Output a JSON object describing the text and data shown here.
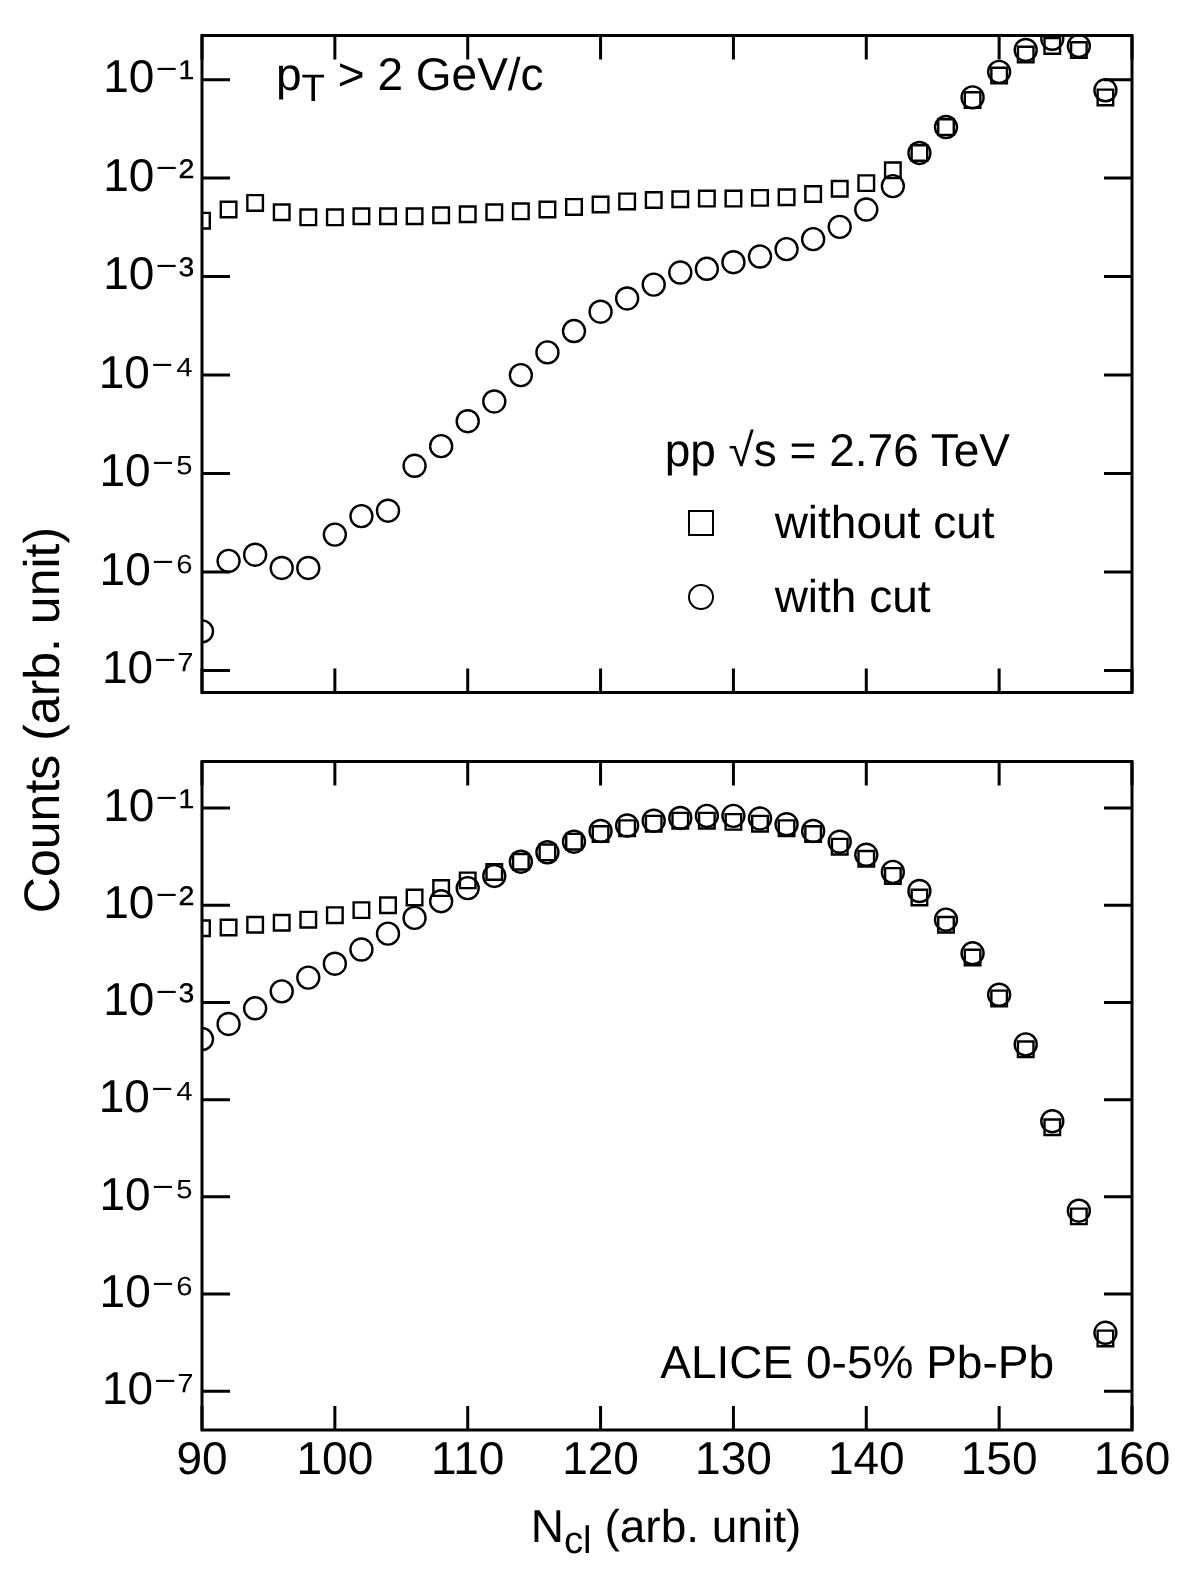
{
  "chart_data": [
    {
      "type": "scatter",
      "ylabel": "Counts (arb. unit)",
      "annotations": [
        "p$_{T}$ > 2 GeV/c"
      ],
      "legend_title": "pp √s = 2.76 TeV",
      "legend": "right",
      "log": true,
      "tick_labels": "y",
      "x": [
        90,
        92,
        94,
        96,
        98,
        100,
        102,
        104,
        106,
        108,
        110,
        112,
        114,
        116,
        118,
        120,
        122,
        124,
        126,
        128,
        130,
        132,
        134,
        136,
        138,
        140,
        142,
        144,
        146,
        148,
        150,
        152,
        154,
        156,
        158
      ],
      "xlim": [
        90,
        160
      ],
      "xticks": [
        90,
        100,
        110,
        120,
        130,
        140,
        150,
        160
      ],
      "ylim": [
        6e-08,
        0.28
      ],
      "yticks": [
        {
          "value": 1e-07,
          "label": "10⁻⁷"
        },
        {
          "value": 1e-06,
          "label": "10⁻⁶"
        },
        {
          "value": 1e-05,
          "label": "10⁻⁵"
        },
        {
          "value": 0.0001,
          "label": "10⁻⁴"
        },
        {
          "value": 0.001,
          "label": "10⁻³"
        },
        {
          "value": 0.01,
          "label": "10⁻²"
        },
        {
          "value": 0.1,
          "label": "10⁻¹"
        }
      ],
      "series": [
        {
          "name": "without cut",
          "color": "#000000",
          "marker": "square",
          "values": [
            0.0037,
            0.0048,
            0.0056,
            0.0045,
            0.004,
            0.004,
            0.0041,
            0.0041,
            0.0041,
            0.0042,
            0.0043,
            0.0045,
            0.0046,
            0.0048,
            0.0051,
            0.0054,
            0.0058,
            0.006,
            0.0061,
            0.0062,
            0.0062,
            0.0063,
            0.0064,
            0.0069,
            0.0078,
            0.0089,
            0.012,
            0.018,
            0.033,
            0.062,
            0.11,
            0.18,
            0.22,
            0.2,
            0.066
          ]
        },
        {
          "name": "with cut",
          "color": "#000000",
          "marker": "circle",
          "values": [
            2.5e-07,
            1.3e-06,
            1.5e-06,
            1.1e-06,
            1.1e-06,
            2.4e-06,
            3.7e-06,
            4.2e-06,
            1.2e-05,
            1.9e-05,
            3.4e-05,
            5.4e-05,
            0.0001,
            0.00017,
            0.00028,
            0.00044,
            0.0006,
            0.00083,
            0.0011,
            0.0012,
            0.0014,
            0.0016,
            0.0019,
            0.0024,
            0.0032,
            0.0048,
            0.0083,
            0.018,
            0.033,
            0.066,
            0.12,
            0.2,
            0.26,
            0.22,
            0.078
          ]
        }
      ]
    },
    {
      "type": "scatter",
      "xlabel": "N$_{cl}$ (arb. unit)",
      "annotations": [
        "ALICE 0-5% Pb-Pb"
      ],
      "log": true,
      "x": [
        90,
        92,
        94,
        96,
        98,
        100,
        102,
        104,
        106,
        108,
        110,
        112,
        114,
        116,
        118,
        120,
        122,
        124,
        126,
        128,
        130,
        132,
        134,
        136,
        138,
        140,
        142,
        144,
        146,
        148,
        150,
        152,
        154,
        156,
        158
      ],
      "xlim": [
        90,
        160
      ],
      "xticks": [
        90,
        100,
        110,
        120,
        130,
        140,
        150,
        160
      ],
      "ylim": [
        4e-08,
        0.3
      ],
      "yticks": [
        {
          "value": 1e-07,
          "label": "10⁻⁷"
        },
        {
          "value": 1e-06,
          "label": "10⁻⁶"
        },
        {
          "value": 1e-05,
          "label": "10⁻⁵"
        },
        {
          "value": 0.0001,
          "label": "10⁻⁴"
        },
        {
          "value": 0.001,
          "label": "10⁻³"
        },
        {
          "value": 0.01,
          "label": "10⁻²"
        },
        {
          "value": 0.1,
          "label": "10⁻¹"
        }
      ],
      "series": [
        {
          "color": "#000000",
          "marker": "square",
          "values": [
            0.0058,
            0.0059,
            0.0063,
            0.0066,
            0.0071,
            0.0079,
            0.0089,
            0.01,
            0.012,
            0.015,
            0.018,
            0.022,
            0.028,
            0.035,
            0.045,
            0.054,
            0.062,
            0.069,
            0.074,
            0.074,
            0.072,
            0.069,
            0.062,
            0.054,
            0.04,
            0.03,
            0.02,
            0.012,
            0.0063,
            0.0029,
            0.0011,
            0.00033,
            5.2e-05,
            6.3e-06,
            3.5e-07
          ]
        },
        {
          "color": "#000000",
          "marker": "circle",
          "values": [
            0.00042,
            0.0006,
            0.00087,
            0.0013,
            0.0018,
            0.0025,
            0.0035,
            0.0051,
            0.0074,
            0.011,
            0.015,
            0.02,
            0.028,
            0.035,
            0.045,
            0.058,
            0.066,
            0.074,
            0.079,
            0.083,
            0.083,
            0.078,
            0.068,
            0.058,
            0.045,
            0.033,
            0.022,
            0.014,
            0.0071,
            0.0032,
            0.0012,
            0.00037,
            6e-05,
            7.2e-06,
            4e-07
          ]
        }
      ]
    }
  ]
}
